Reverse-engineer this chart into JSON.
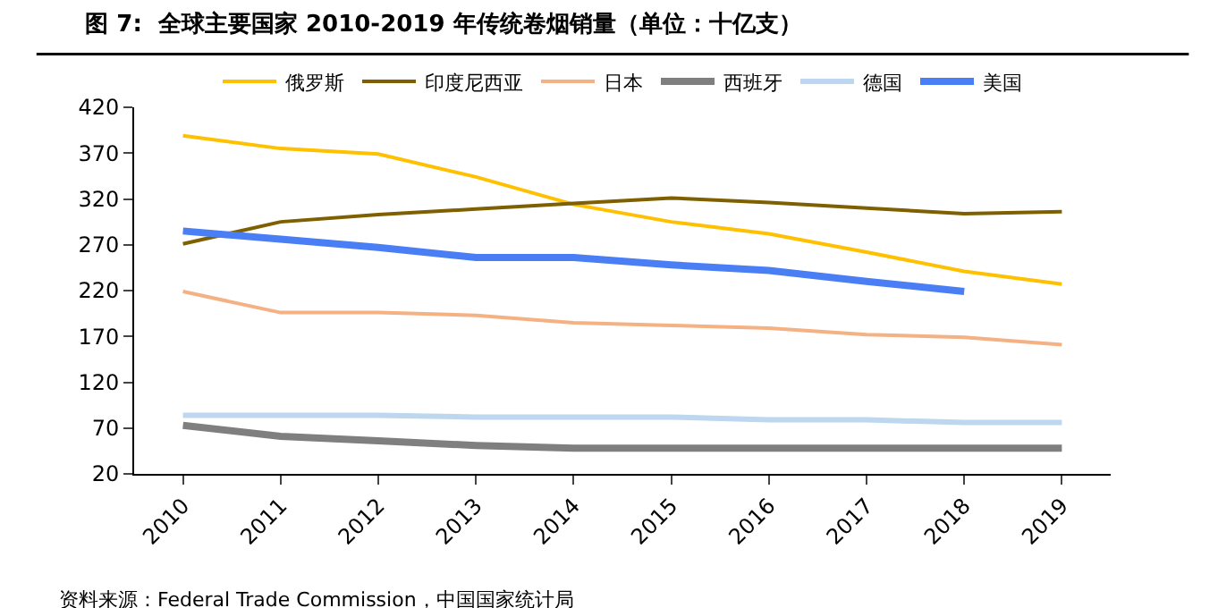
{
  "chart_data": {
    "type": "line",
    "title": "图 7:  全球主要国家 2010-2019 年传统卷烟销量（单位：十亿支）",
    "categories": [
      "2010",
      "2011",
      "2012",
      "2013",
      "2014",
      "2015",
      "2016",
      "2017",
      "2018",
      "2019"
    ],
    "series": [
      {
        "name": "俄罗斯",
        "color": "#ffc000",
        "values": [
          389,
          375,
          369,
          344,
          314,
          295,
          282,
          262,
          241,
          227
        ]
      },
      {
        "name": "印度尼西亚",
        "color": "#7f6000",
        "values": [
          271,
          295,
          303,
          309,
          315,
          321,
          316,
          310,
          304,
          306
        ]
      },
      {
        "name": "日本",
        "color": "#f4b183",
        "values": [
          219,
          196,
          196,
          193,
          185,
          182,
          179,
          172,
          169,
          161
        ]
      },
      {
        "name": "西班牙",
        "color": "#7f7f7f",
        "values": [
          73,
          61,
          56,
          51,
          48,
          48,
          48,
          48,
          48,
          48
        ]
      },
      {
        "name": "德国",
        "color": "#bdd7ee",
        "values": [
          84,
          84,
          84,
          82,
          82,
          82,
          79,
          79,
          76,
          76
        ]
      },
      {
        "name": "美国",
        "color": "#4a7ef5",
        "values": [
          285,
          276,
          267,
          256,
          256,
          248,
          242,
          230,
          219,
          null
        ]
      }
    ],
    "ylim": [
      20,
      420
    ],
    "yticks": [
      20,
      70,
      120,
      170,
      220,
      270,
      320,
      370,
      420
    ],
    "legend": "top",
    "marker": "none",
    "line_style": "solid",
    "annotations": [
      "资料来源：Federal Trade Commission，中国国家统计局"
    ]
  }
}
